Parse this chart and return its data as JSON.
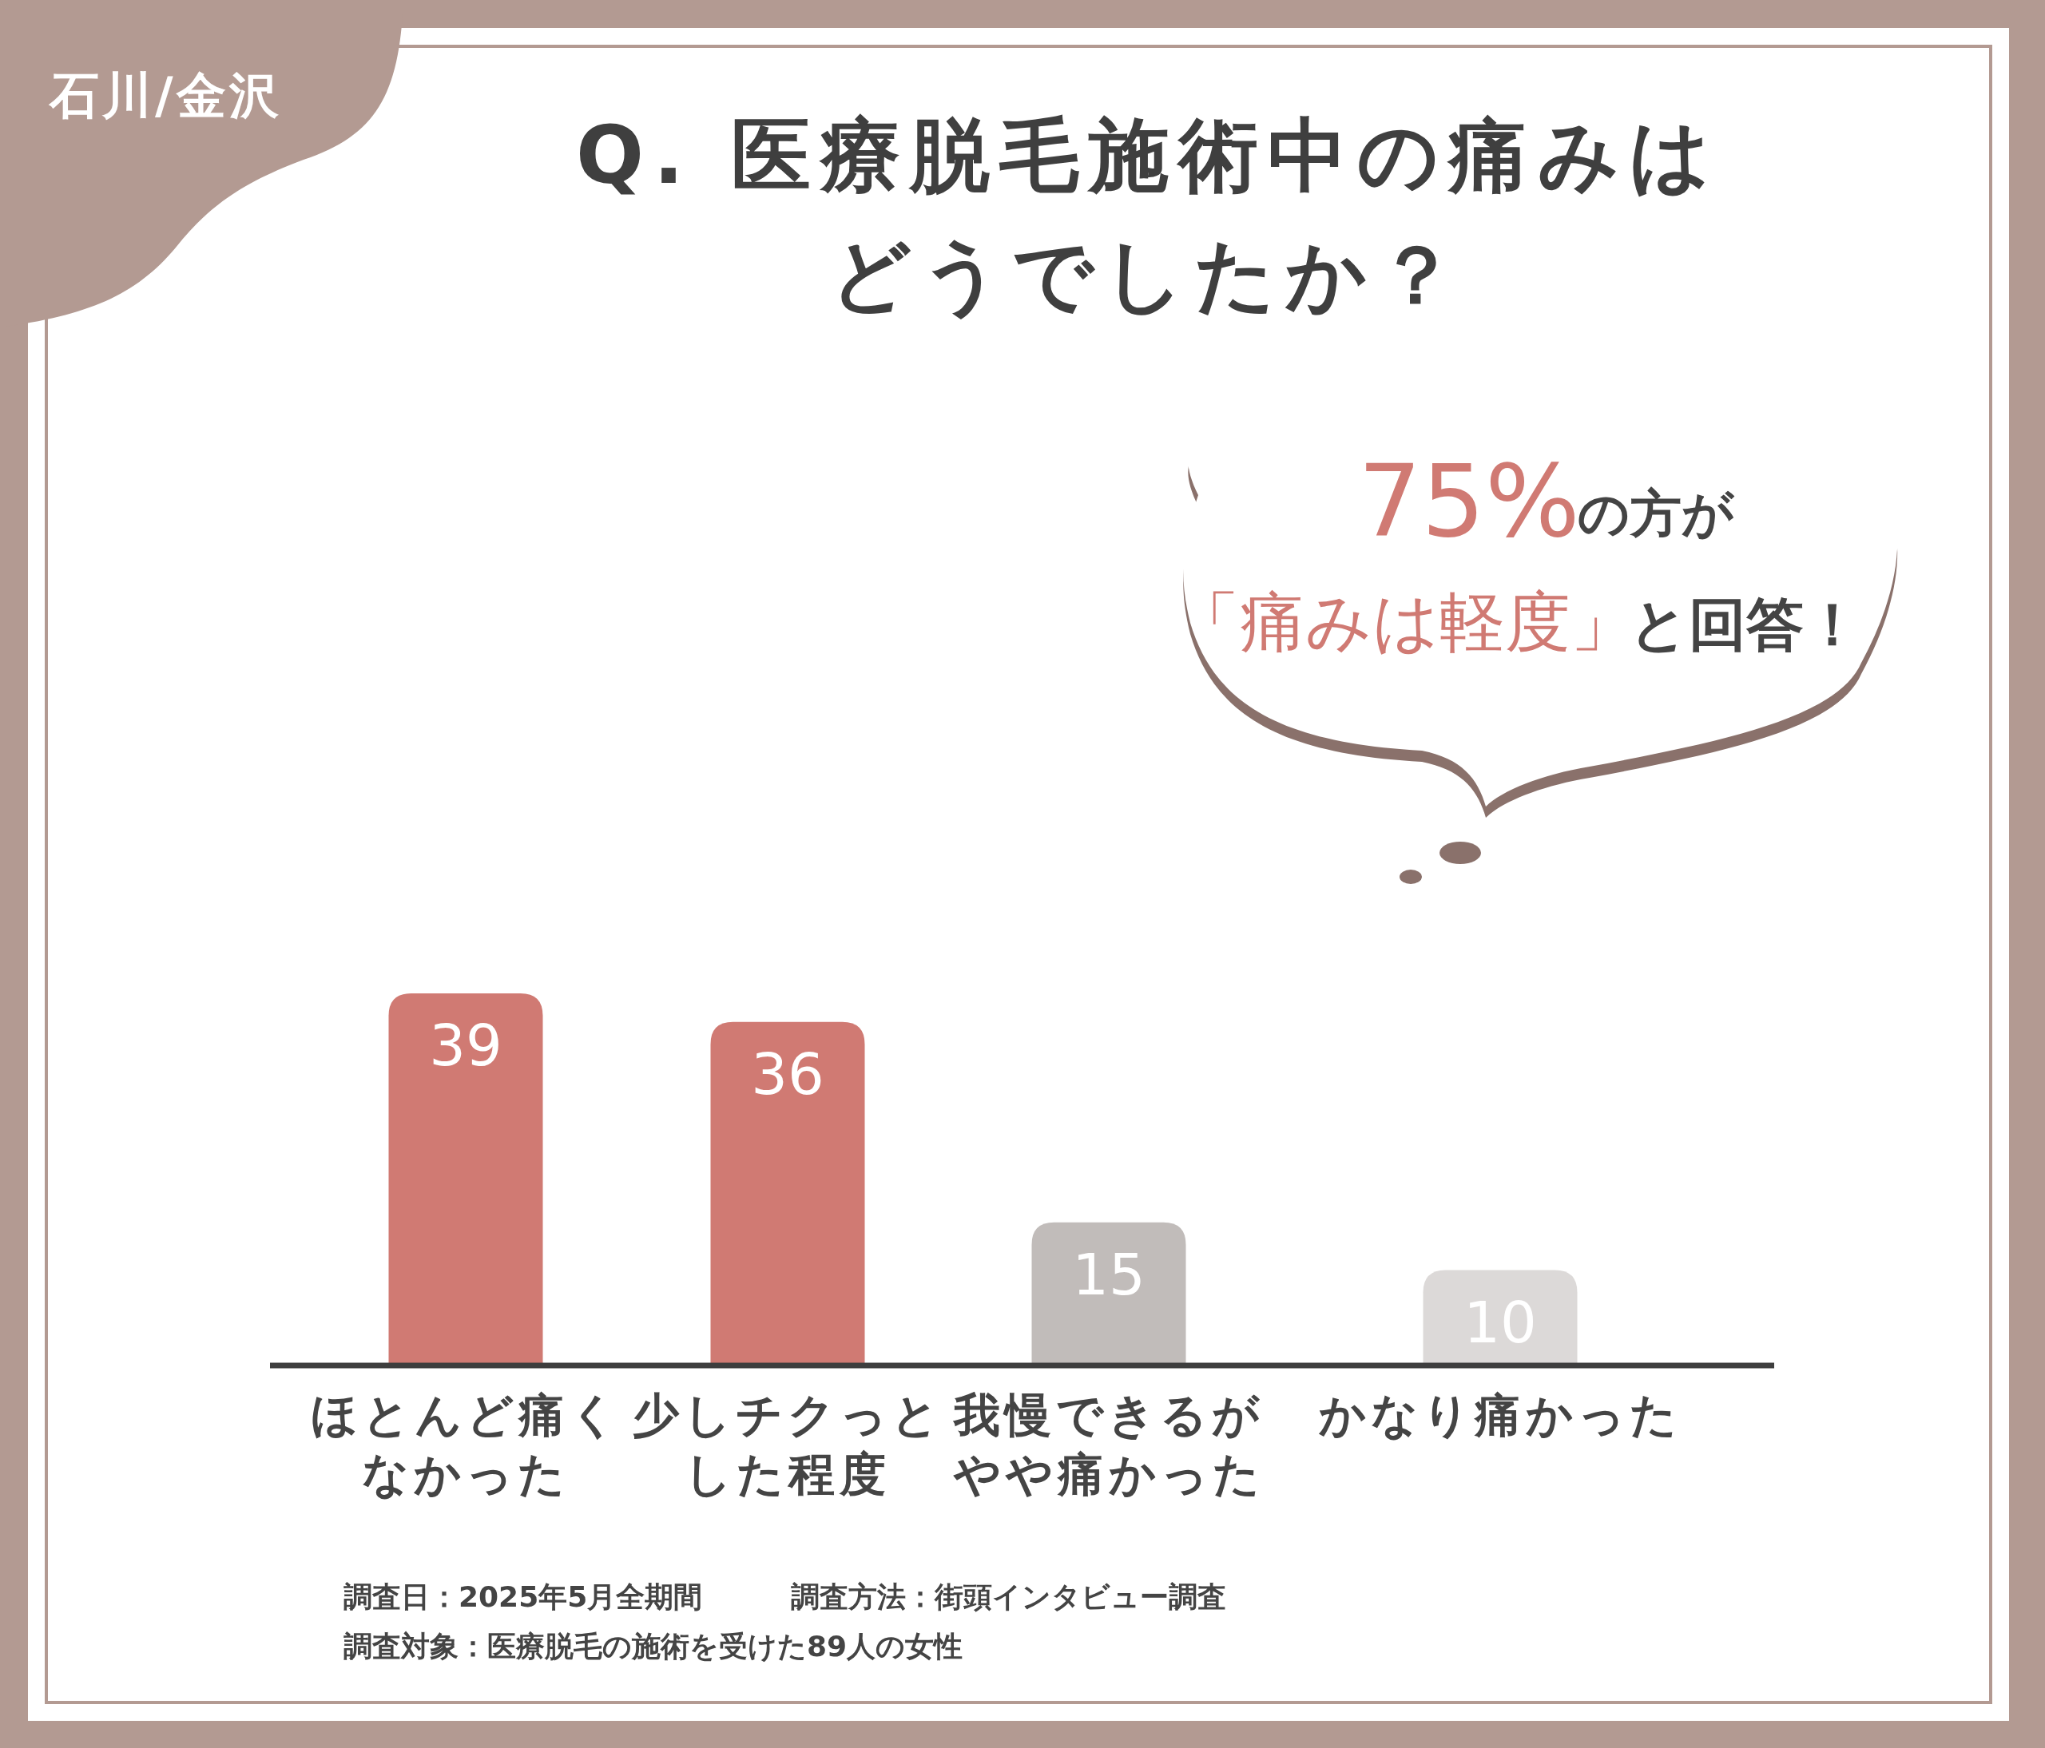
{
  "chart_data": {
    "type": "bar",
    "title": "Q. 医療脱毛施術中の痛みはどうでしたか？",
    "categories": [
      "ほとんど痛くなかった",
      "少しチクっとした程度",
      "我慢できるがやや痛かった",
      "かなり痛かった"
    ],
    "values": [
      39,
      36,
      15,
      10
    ],
    "colors": [
      "#d07a73",
      "#d07a73",
      "#c1bcba",
      "#dcd9d8"
    ],
    "data_labels": true,
    "relative": false,
    "annotations": [
      "石川/金沢",
      "75%",
      "の方が",
      "「痛みは軽度」",
      "と回答！",
      "調査日：2025年5月全期間",
      "調査方法：街頭インタビュー調査",
      "調査対象：医療脱毛の施術を受けた89人の女性"
    ]
  }
}
